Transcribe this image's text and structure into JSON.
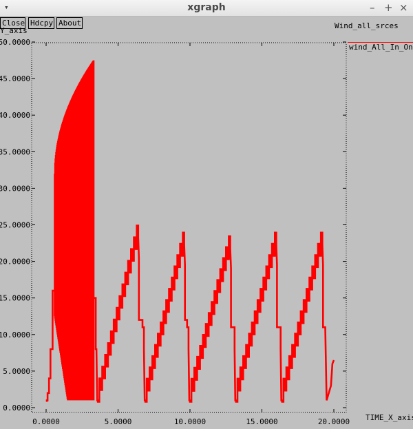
{
  "window": {
    "title": "xgraph",
    "menu_glyph": "▾",
    "minimize_glyph": "–",
    "maximize_glyph": "+",
    "close_glyph": "×"
  },
  "toolbar": {
    "close_label": "Close",
    "hdcpy_label": "Hdcpy",
    "about_label": "About"
  },
  "chart_data": {
    "type": "line",
    "title": "Wind_all_srces",
    "xlabel": "TIME_X_axis",
    "ylabel": "Y_axis",
    "xlim": [
      -1.0,
      20.5
    ],
    "ylim": [
      -0.5,
      50.0
    ],
    "xticks": [
      0,
      5,
      10,
      15,
      20
    ],
    "xtick_labels": [
      "0.0000",
      "5.0000",
      "10.0000",
      "15.0000",
      "20.0000"
    ],
    "yticks": [
      0,
      5,
      10,
      15,
      20,
      25,
      30,
      35,
      40,
      45,
      50
    ],
    "ytick_labels": [
      "0.0000",
      "5.0000",
      "10.0000",
      "15.0000",
      "20.0000",
      "25.0000",
      "30.0000",
      "35.0000",
      "40.0000",
      "45.0000",
      "50.0000"
    ],
    "grid": false,
    "legend_position": "right",
    "colors": {
      "series": "#ff0000",
      "background": "#c0c0c0",
      "axis": "#000000"
    },
    "series": [
      {
        "name": "wind_All_In_One",
        "color": "#ff0000",
        "startup": [
          [
            0.05,
            1
          ],
          [
            0.1,
            2
          ],
          [
            0.2,
            4
          ],
          [
            0.3,
            8
          ],
          [
            0.45,
            16
          ],
          [
            0.6,
            16
          ]
        ],
        "dense_block": {
          "x_start": 0.6,
          "x_end": 3.3,
          "peak_start": 32,
          "peak_end": 47.5,
          "trough_start": 12.5,
          "trough_end": 1
        },
        "sawtooth_cycles": [
          {
            "start_x": 3.6,
            "peak_x": 6.4,
            "peak": 24.5,
            "hold": 12,
            "drop_x": 6.8,
            "tail": 11
          },
          {
            "start_x": 6.9,
            "peak_x": 9.6,
            "peak": 23.5,
            "hold": 12,
            "drop_x": 9.9,
            "tail": 11
          },
          {
            "start_x": 10.0,
            "peak_x": 12.8,
            "peak": 23.0,
            "hold": 11,
            "drop_x": 13.1,
            "tail": 11
          },
          {
            "start_x": 13.2,
            "peak_x": 16.0,
            "peak": 23.5,
            "hold": 11,
            "drop_x": 16.3,
            "tail": 11
          },
          {
            "start_x": 16.4,
            "peak_x": 19.2,
            "peak": 23.5,
            "hold": 11,
            "drop_x": 19.4,
            "tail": 11
          }
        ],
        "final_tail": [
          [
            19.5,
            1
          ],
          [
            19.8,
            3
          ],
          [
            19.9,
            6
          ],
          [
            20.0,
            6.5
          ]
        ]
      }
    ]
  }
}
